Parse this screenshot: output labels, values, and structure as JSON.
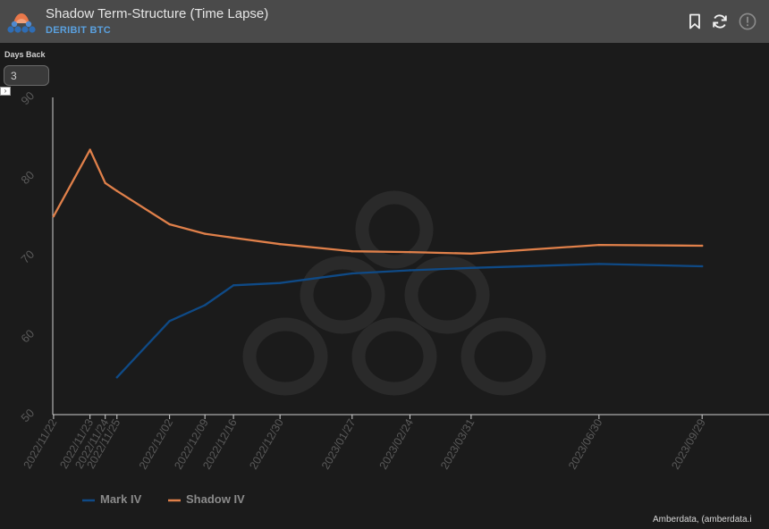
{
  "header": {
    "title": "Shadow Term-Structure (Time Lapse)",
    "subtitle": "DERIBIT BTC",
    "icons": [
      "bookmark-icon",
      "refresh-icon",
      "info-icon"
    ]
  },
  "controls": {
    "days_back_label": "Days Back",
    "days_back_value": "3"
  },
  "credit": "Amberdata, (amberdata.i",
  "colors": {
    "mark_iv": "#0f4a86",
    "shadow_iv": "#e0804a",
    "accent": "#5aa0de"
  },
  "chart_data": {
    "type": "line",
    "x_axis": {
      "type": "date",
      "min": "2022-11-22",
      "max": "2023-09-29",
      "tick_labels": [
        "2022/11/22",
        "2022/11/23",
        "2022/11/24",
        "2022/11/25",
        "2022/12/02",
        "2022/12/09",
        "2022/12/16",
        "2022/12/30",
        "2023/01/27",
        "2023/02/24",
        "2023/03/31",
        "2023/06/30",
        "2023/09/29"
      ]
    },
    "y_axis": {
      "min": 50,
      "max": 90,
      "ticks": [
        50,
        60,
        70,
        80,
        90
      ]
    },
    "grid": false,
    "legend_position": "bottom-left",
    "series": [
      {
        "name": "Mark IV",
        "color": "#0f4a86",
        "points": [
          {
            "x": "2022-11-25",
            "y": 54.7
          },
          {
            "x": "2022-12-02",
            "y": 61.8
          },
          {
            "x": "2022-12-09",
            "y": 63.8
          },
          {
            "x": "2022-12-16",
            "y": 66.3
          },
          {
            "x": "2022-12-30",
            "y": 66.6
          },
          {
            "x": "2023-01-27",
            "y": 67.8
          },
          {
            "x": "2023-02-24",
            "y": 68.2
          },
          {
            "x": "2023-03-31",
            "y": 68.5
          },
          {
            "x": "2023-06-30",
            "y": 69.0
          },
          {
            "x": "2023-09-29",
            "y": 68.7
          }
        ]
      },
      {
        "name": "Shadow IV",
        "color": "#e0804a",
        "points": [
          {
            "x": "2022-11-22",
            "y": 75.0
          },
          {
            "x": "2022-11-23",
            "y": 83.4
          },
          {
            "x": "2022-11-24",
            "y": 79.2
          },
          {
            "x": "2022-11-25",
            "y": 78.2
          },
          {
            "x": "2022-12-02",
            "y": 74.0
          },
          {
            "x": "2022-12-09",
            "y": 72.8
          },
          {
            "x": "2022-12-16",
            "y": 72.3
          },
          {
            "x": "2022-12-30",
            "y": 71.5
          },
          {
            "x": "2023-01-27",
            "y": 70.6
          },
          {
            "x": "2023-02-24",
            "y": 70.5
          },
          {
            "x": "2023-03-31",
            "y": 70.3
          },
          {
            "x": "2023-06-30",
            "y": 71.4
          },
          {
            "x": "2023-09-29",
            "y": 71.3
          }
        ]
      }
    ]
  }
}
